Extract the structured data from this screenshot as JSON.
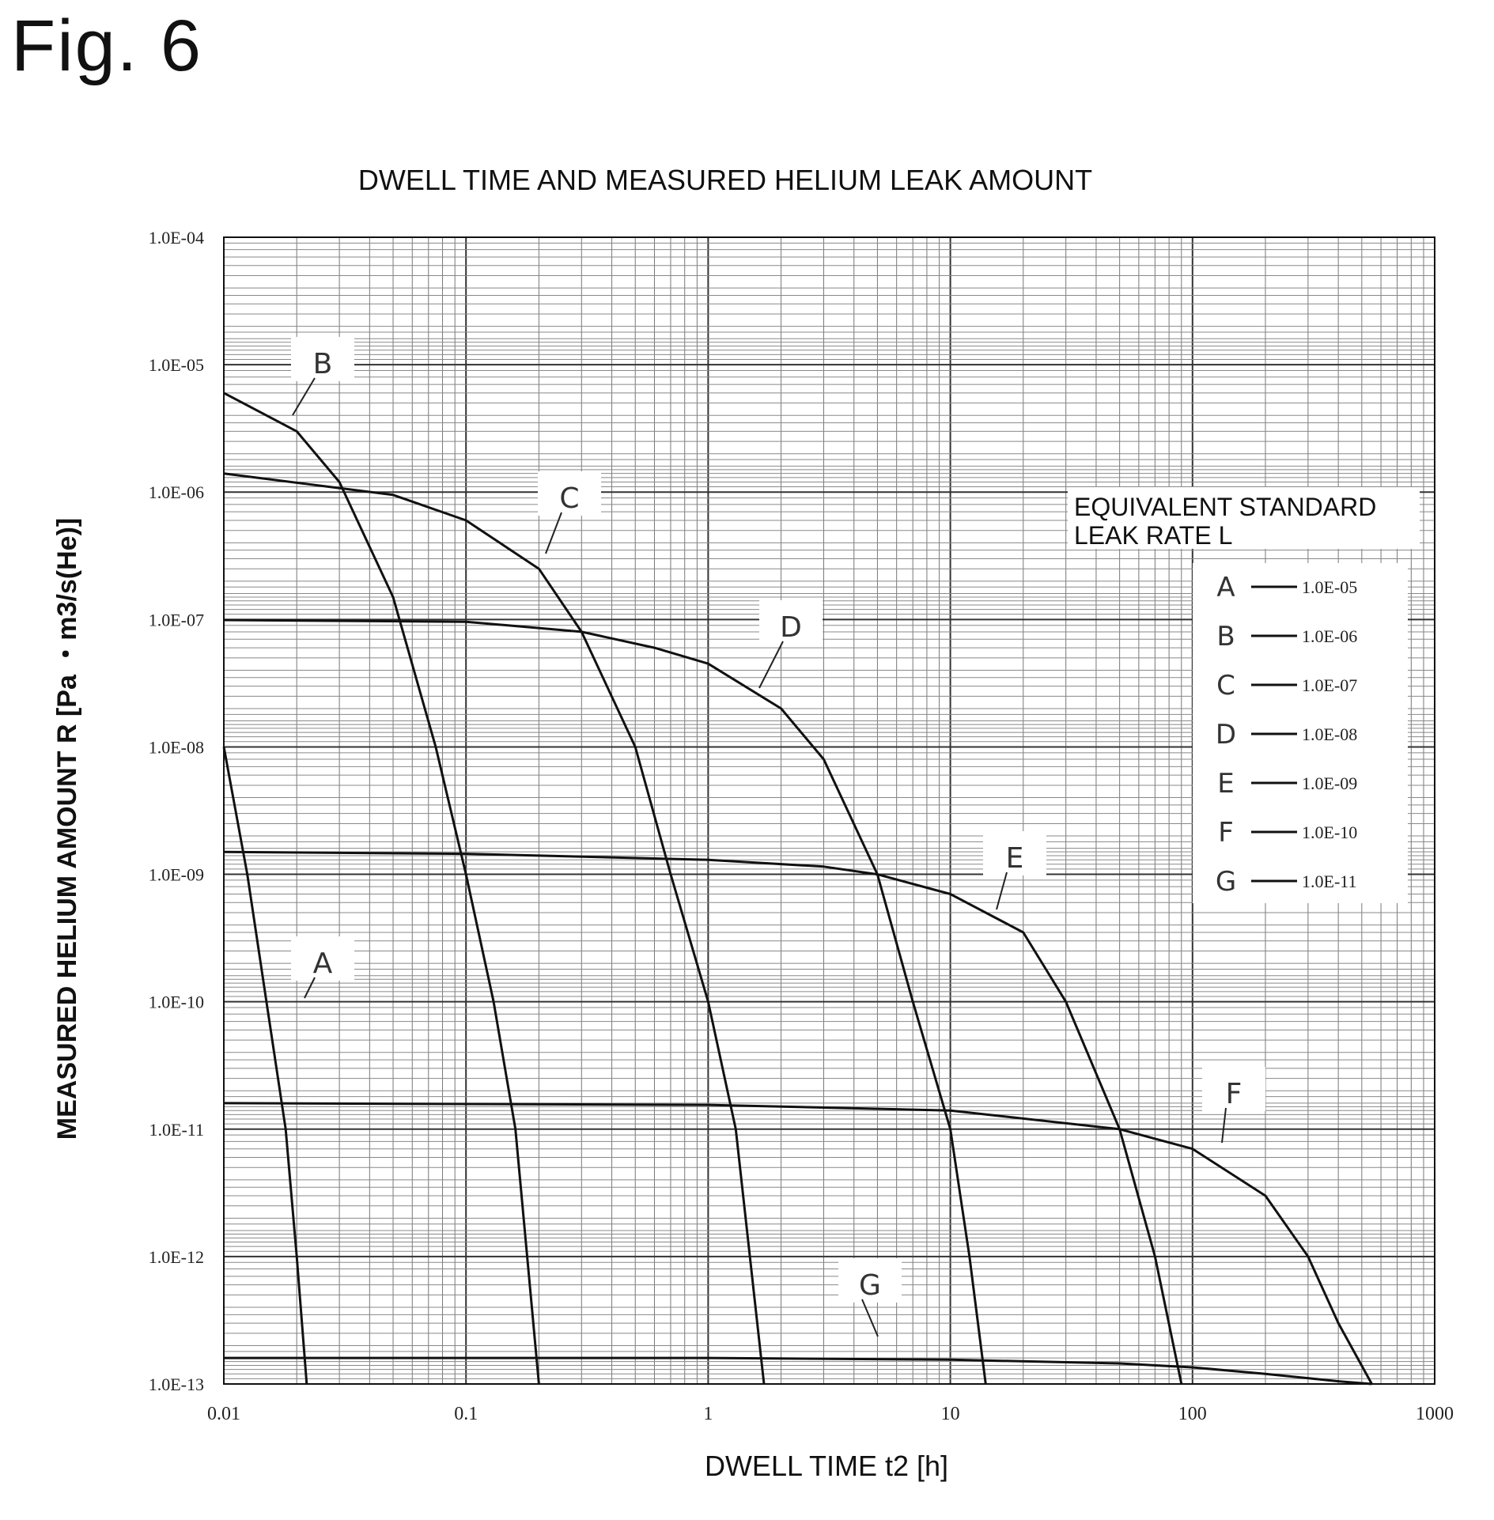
{
  "figure_label": "Fig. 6",
  "chart_data": {
    "type": "line",
    "title": "DWELL TIME AND MEASURED HELIUM LEAK AMOUNT",
    "xlabel": "DWELL TIME t2 [h]",
    "ylabel": "MEASURED HELIUM AMOUNT R  [Pa  ・m3/s(He)]",
    "x_scale": "log",
    "y_scale": "log",
    "xlim": [
      0.01,
      1000
    ],
    "ylim": [
      1e-13,
      0.0001
    ],
    "x_ticks": [
      "0.01",
      "0.1",
      "1",
      "10",
      "100",
      "1000"
    ],
    "y_ticks": [
      "1.0E-04",
      "1.0E-05",
      "1.0E-06",
      "1.0E-07",
      "1.0E-08",
      "1.0E-09",
      "1.0E-10",
      "1.0E-11",
      "1.0E-12",
      "1.0E-13"
    ],
    "grid": true,
    "legend": {
      "title_line1": "EQUIVALENT STANDARD",
      "title_line2": "LEAK RATE  L",
      "placement": "right",
      "entries": [
        {
          "label": "A",
          "value": "1.0E-05"
        },
        {
          "label": "B",
          "value": "1.0E-06"
        },
        {
          "label": "C",
          "value": "1.0E-07"
        },
        {
          "label": "D",
          "value": "1.0E-08"
        },
        {
          "label": "E",
          "value": "1.0E-09"
        },
        {
          "label": "F",
          "value": "1.0E-10"
        },
        {
          "label": "G",
          "value": "1.0E-11"
        }
      ]
    },
    "series": [
      {
        "name": "A",
        "x": [
          0.01,
          0.0125,
          0.015,
          0.018,
          0.02,
          0.022
        ],
        "y": [
          1e-08,
          1e-09,
          1e-10,
          1e-11,
          1e-12,
          1e-13
        ]
      },
      {
        "name": "B",
        "x": [
          0.01,
          0.02,
          0.03,
          0.05,
          0.075,
          0.1,
          0.13,
          0.16,
          0.2
        ],
        "y": [
          6e-06,
          3e-06,
          1.2e-06,
          1.5e-07,
          1e-08,
          1e-09,
          1e-10,
          1e-11,
          1e-13
        ]
      },
      {
        "name": "C",
        "x": [
          0.01,
          0.05,
          0.1,
          0.2,
          0.3,
          0.5,
          0.7,
          1,
          1.3,
          1.7
        ],
        "y": [
          1.4e-06,
          9.5e-07,
          6e-07,
          2.5e-07,
          8e-08,
          1e-08,
          1e-09,
          1e-10,
          1e-11,
          1e-13
        ]
      },
      {
        "name": "D",
        "x": [
          0.01,
          0.1,
          0.3,
          0.6,
          1,
          2,
          3,
          5,
          7,
          10,
          12,
          14
        ],
        "y": [
          9.9e-08,
          9.6e-08,
          8e-08,
          6e-08,
          4.5e-08,
          2e-08,
          8e-09,
          1e-09,
          1e-10,
          1e-11,
          1e-12,
          1e-13
        ]
      },
      {
        "name": "E",
        "x": [
          0.01,
          0.1,
          1,
          3,
          5,
          10,
          20,
          30,
          50,
          70,
          90
        ],
        "y": [
          1.5e-09,
          1.45e-09,
          1.3e-09,
          1.15e-09,
          1e-09,
          7e-10,
          3.5e-10,
          1e-10,
          1e-11,
          1e-12,
          1e-13
        ]
      },
      {
        "name": "F",
        "x": [
          0.01,
          1,
          10,
          50,
          100,
          200,
          300,
          400,
          550
        ],
        "y": [
          1.6e-11,
          1.55e-11,
          1.4e-11,
          1e-11,
          7e-12,
          3e-12,
          1e-12,
          3e-13,
          1e-13
        ]
      },
      {
        "name": "G",
        "x": [
          0.01,
          1,
          10,
          50,
          100,
          200,
          400,
          550
        ],
        "y": [
          1.6e-13,
          1.6e-13,
          1.55e-13,
          1.45e-13,
          1.35e-13,
          1.2e-13,
          1.05e-13,
          1e-13
        ]
      }
    ],
    "annotations": [
      "A",
      "B",
      "C",
      "D",
      "E",
      "F",
      "G"
    ]
  }
}
